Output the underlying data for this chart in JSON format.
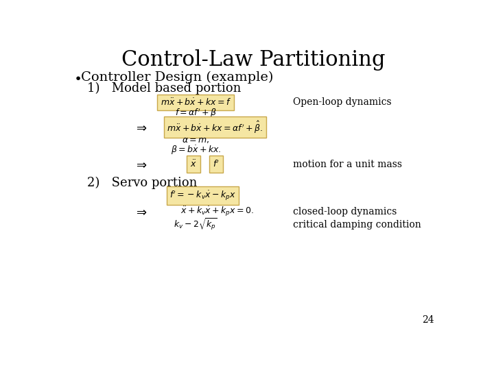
{
  "title": "Control-Law Partitioning",
  "title_fontsize": 22,
  "background_color": "#ffffff",
  "bullet": "Controller Design (example)",
  "bullet_fontsize": 14,
  "sub1": "1)   Model based portion",
  "sub1_fontsize": 13,
  "sub2": "2)   Servo portion",
  "sub2_fontsize": 13,
  "eq1": "$m\\ddot{x} + b\\dot{x} + kx = f$",
  "eq2": "$f = \\alpha f^{\\prime} + \\beta$",
  "eq3": "$m\\ddot{x} + b\\dot{x} + kx = \\alpha f^{\\prime} + \\hat{\\beta}.$",
  "eq4": "$\\alpha = m,$",
  "eq5": "$\\beta = b\\dot{x} + kx.$",
  "eq6_a": "$\\ddot{x}$",
  "eq6_b": "$f^{\\prime}$",
  "eq7": "$f^{\\prime} = -k_v \\dot{x} - k_p x$",
  "eq8": "$\\ddot{x} + k_v \\dot{x} + k_p x = 0.$",
  "eq9": "$k_v - 2\\sqrt{k_p}$",
  "label1": "Open-loop dynamics",
  "label2": "motion for a unit mass",
  "label3": "closed-loop dynamics",
  "label4": "critical damping condition",
  "page_num": "24",
  "arrow": "$\\Rightarrow$",
  "box_facecolor": "#f5e6a3",
  "box_edgecolor": "#c8a84b",
  "text_color": "#000000",
  "eq_fontsize": 9,
  "label_fontsize": 10,
  "arrow_fontsize": 13
}
